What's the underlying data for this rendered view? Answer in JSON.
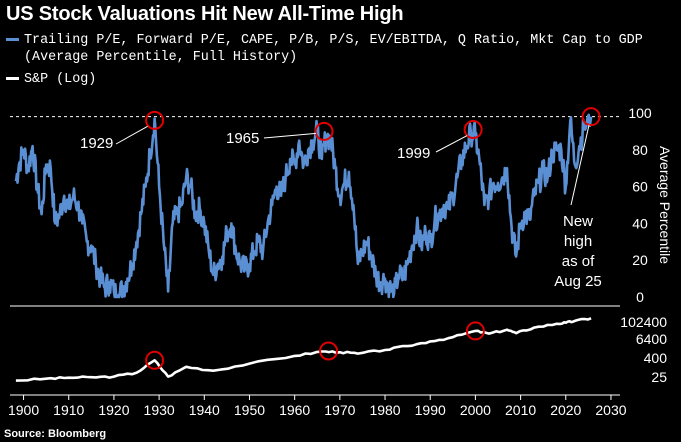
{
  "title": "US Stock Valuations Hit New All-Time High",
  "legend": {
    "series1_line1": "Trailing P/E, Forward P/E, CAPE, P/B, P/S, EV/EBITDA, Q Ratio, Mkt Cap to GDP",
    "series1_line2": "(Average Percentile, Full History)",
    "series2": "S&P (Log)"
  },
  "source": "Source: Bloomberg",
  "colors": {
    "valuation": "#5b8fd4",
    "sp": "#ffffff",
    "highlight": "#e00000",
    "background": "#000000"
  },
  "chart_data": [
    {
      "type": "line",
      "series": [
        {
          "name": "Trailing P/E, Forward P/E, CAPE, P/B, P/S, EV/EBITDA, Q Ratio, Mkt Cap to GDP (Average Percentile, Full History)",
          "points": [
            [
              1898.3,
              63
            ],
            [
              1899,
              72
            ],
            [
              1900,
              80
            ],
            [
              1901,
              70
            ],
            [
              1902,
              82
            ],
            [
              1903,
              60
            ],
            [
              1904,
              45
            ],
            [
              1905,
              72
            ],
            [
              1906,
              70
            ],
            [
              1907,
              40
            ],
            [
              1908,
              45
            ],
            [
              1909,
              55
            ],
            [
              1910,
              48
            ],
            [
              1911,
              55
            ],
            [
              1912,
              50
            ],
            [
              1913,
              40
            ],
            [
              1914,
              30
            ],
            [
              1915,
              28
            ],
            [
              1916,
              18
            ],
            [
              1917,
              10
            ],
            [
              1918,
              5
            ],
            [
              1919,
              8
            ],
            [
              1920,
              3
            ],
            [
              1921,
              1
            ],
            [
              1922,
              5
            ],
            [
              1923,
              10
            ],
            [
              1924,
              18
            ],
            [
              1925,
              30
            ],
            [
              1926,
              45
            ],
            [
              1927,
              60
            ],
            [
              1928,
              78
            ],
            [
              1929,
              97
            ],
            [
              1930,
              60
            ],
            [
              1931,
              30
            ],
            [
              1932,
              3
            ],
            [
              1933,
              40
            ],
            [
              1934,
              45
            ],
            [
              1935,
              50
            ],
            [
              1936,
              65
            ],
            [
              1937,
              60
            ],
            [
              1938,
              45
            ],
            [
              1939,
              48
            ],
            [
              1940,
              40
            ],
            [
              1941,
              25
            ],
            [
              1942,
              12
            ],
            [
              1943,
              18
            ],
            [
              1944,
              22
            ],
            [
              1945,
              35
            ],
            [
              1946,
              40
            ],
            [
              1947,
              25
            ],
            [
              1948,
              18
            ],
            [
              1949,
              15
            ],
            [
              1950,
              18
            ],
            [
              1951,
              25
            ],
            [
              1952,
              30
            ],
            [
              1953,
              25
            ],
            [
              1954,
              40
            ],
            [
              1955,
              50
            ],
            [
              1956,
              60
            ],
            [
              1957,
              55
            ],
            [
              1958,
              65
            ],
            [
              1959,
              75
            ],
            [
              1960,
              72
            ],
            [
              1961,
              85
            ],
            [
              1962,
              72
            ],
            [
              1963,
              80
            ],
            [
              1964,
              85
            ],
            [
              1965,
              90
            ],
            [
              1966,
              75
            ],
            [
              1967,
              88
            ],
            [
              1968,
              85
            ],
            [
              1969,
              70
            ],
            [
              1970,
              55
            ],
            [
              1971,
              62
            ],
            [
              1972,
              68
            ],
            [
              1973,
              50
            ],
            [
              1974,
              18
            ],
            [
              1975,
              25
            ],
            [
              1976,
              30
            ],
            [
              1977,
              22
            ],
            [
              1978,
              12
            ],
            [
              1979,
              8
            ],
            [
              1980,
              10
            ],
            [
              1981,
              5
            ],
            [
              1982,
              2
            ],
            [
              1983,
              12
            ],
            [
              1984,
              10
            ],
            [
              1985,
              18
            ],
            [
              1986,
              28
            ],
            [
              1987,
              38
            ],
            [
              1988,
              28
            ],
            [
              1989,
              35
            ],
            [
              1990,
              30
            ],
            [
              1991,
              42
            ],
            [
              1992,
              45
            ],
            [
              1993,
              50
            ],
            [
              1994,
              48
            ],
            [
              1995,
              55
            ],
            [
              1996,
              65
            ],
            [
              1997,
              75
            ],
            [
              1998,
              82
            ],
            [
              1999,
              89
            ],
            [
              2000,
              88
            ],
            [
              2001,
              72
            ],
            [
              2002,
              50
            ],
            [
              2003,
              55
            ],
            [
              2004,
              62
            ],
            [
              2005,
              62
            ],
            [
              2006,
              65
            ],
            [
              2007,
              70
            ],
            [
              2008,
              38
            ],
            [
              2009,
              22
            ],
            [
              2010,
              40
            ],
            [
              2011,
              45
            ],
            [
              2012,
              42
            ],
            [
              2013,
              55
            ],
            [
              2014,
              62
            ],
            [
              2015,
              68
            ],
            [
              2016,
              65
            ],
            [
              2017,
              78
            ],
            [
              2018,
              80
            ],
            [
              2019,
              80
            ],
            [
              2020,
              60
            ],
            [
              2021,
              96
            ],
            [
              2022,
              72
            ],
            [
              2023,
              82
            ],
            [
              2024,
              92
            ],
            [
              2025.6,
              98
            ]
          ]
        }
      ],
      "ylim": [
        0,
        100
      ],
      "yticks": [
        "0",
        "20",
        "40",
        "60",
        "80",
        "100"
      ],
      "ylabel": "Average Percentile",
      "xlim": [
        1897,
        2032
      ],
      "reference_line": {
        "y": 98,
        "style": "dashed"
      },
      "highlights": [
        {
          "x": 1929,
          "y": 96
        },
        {
          "x": 1966.5,
          "y": 90
        },
        {
          "x": 1999.5,
          "y": 91
        },
        {
          "x": 2025.6,
          "y": 98
        }
      ],
      "annotations": [
        {
          "text": "1929",
          "x": 1929
        },
        {
          "text": "1965",
          "x": 1966.5
        },
        {
          "text": "1999",
          "x": 1999.5
        },
        {
          "lines": [
            "New",
            "high",
            "as of",
            "Aug 25"
          ],
          "x": 2025.6
        }
      ]
    },
    {
      "type": "line",
      "scale": "log",
      "series": [
        {
          "name": "S&P (Log)",
          "points": [
            [
              1898.3,
              20
            ],
            [
              1905,
              26
            ],
            [
              1910,
              30
            ],
            [
              1915,
              32
            ],
            [
              1920,
              35
            ],
            [
              1925,
              60
            ],
            [
              1929,
              350
            ],
            [
              1932,
              35
            ],
            [
              1936,
              140
            ],
            [
              1942,
              80
            ],
            [
              1950,
              220
            ],
            [
              1960,
              650
            ],
            [
              1966,
              1200
            ],
            [
              1970,
              1100
            ],
            [
              1974,
              900
            ],
            [
              1980,
              1500
            ],
            [
              1985,
              2600
            ],
            [
              1990,
              5000
            ],
            [
              1995,
              9000
            ],
            [
              2000,
              22000
            ],
            [
              2003,
              15000
            ],
            [
              2007,
              26000
            ],
            [
              2009,
              16000
            ],
            [
              2013,
              35000
            ],
            [
              2018,
              60000
            ],
            [
              2020,
              70000
            ],
            [
              2022,
              90000
            ],
            [
              2025.6,
              130000
            ]
          ]
        }
      ],
      "yticks": [
        "25",
        "400",
        "6400",
        "102400"
      ],
      "highlights": [
        {
          "x": 1929,
          "y": 350
        },
        {
          "x": 1967.5,
          "y": 1300
        },
        {
          "x": 2000,
          "y": 22000
        }
      ]
    }
  ],
  "x_axis": {
    "ticks": [
      "1900",
      "1910",
      "1920",
      "1930",
      "1940",
      "1950",
      "1960",
      "1970",
      "1980",
      "1990",
      "2000",
      "2010",
      "2020",
      "2030"
    ]
  }
}
